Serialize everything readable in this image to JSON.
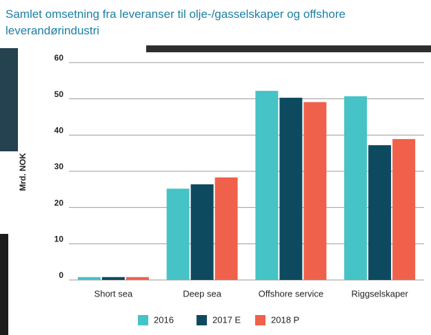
{
  "chart_data": {
    "type": "bar",
    "title": "Samlet omsetning fra leveranser til olje-/gasselskaper og offshore leverandørindustri",
    "ylabel": "Mrd. NOK",
    "categories": [
      "Short sea",
      "Deep sea",
      "Offshore service",
      "Riggselskaper"
    ],
    "series": [
      {
        "name": "2016",
        "color": "#45c3c6",
        "values": [
          0.8,
          25.2,
          52.2,
          50.7
        ]
      },
      {
        "name": "2017 E",
        "color": "#0e4a5f",
        "values": [
          0.8,
          26.4,
          50.3,
          37.2
        ]
      },
      {
        "name": "2018 P",
        "color": "#f0614b",
        "values": [
          0.8,
          28.3,
          49.1,
          38.9
        ]
      }
    ],
    "ylim": [
      0,
      60
    ],
    "yticks": [
      0,
      10,
      20,
      30,
      40,
      50,
      60
    ],
    "grid": true
  }
}
